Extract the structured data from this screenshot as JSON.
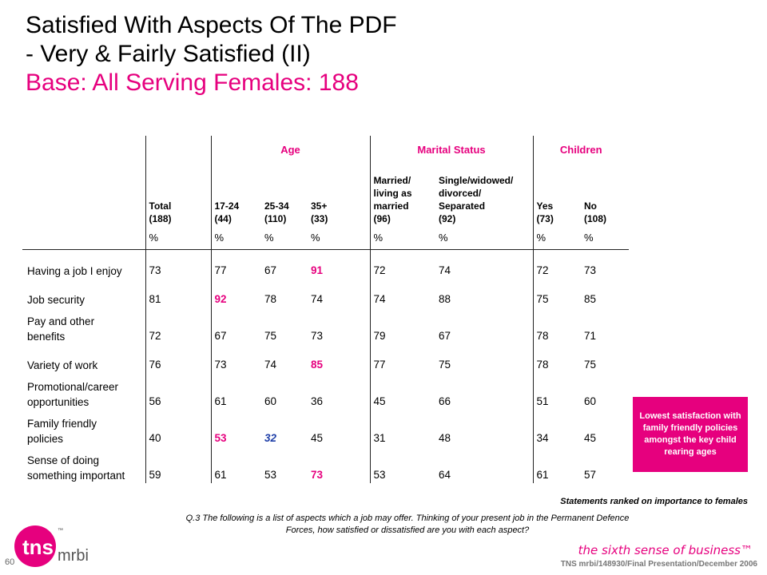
{
  "title": {
    "line1": "Satisfied  With Aspects Of The PDF",
    "line2": "- Very & Fairly Satisfied  (II)",
    "base": "Base:  All Serving Females:  188"
  },
  "groups": {
    "age": "Age",
    "marital": "Marital Status",
    "children": "Children"
  },
  "columns": {
    "total": [
      "Total",
      "(188)"
    ],
    "a1": [
      "17-24",
      "(44)"
    ],
    "a2": [
      "25-34",
      "(110)"
    ],
    "a3": [
      "35+",
      "(33)"
    ],
    "m1": [
      "Married/",
      "living as",
      "married",
      "(96)"
    ],
    "m2": [
      "Single/widowed/",
      "divorced/",
      "Separated",
      "(92)"
    ],
    "c1": [
      "Yes",
      "(73)"
    ],
    "c2": [
      "No",
      "(108)"
    ]
  },
  "pct": "%",
  "rows": [
    {
      "label": [
        "Having a job I enjoy"
      ],
      "values": [
        "73",
        "77",
        "67",
        "91",
        "72",
        "74",
        "72",
        "73"
      ],
      "hl": [
        null,
        null,
        null,
        "pink",
        null,
        null,
        null,
        null
      ]
    },
    {
      "label": [
        "Job security"
      ],
      "values": [
        "81",
        "92",
        "78",
        "74",
        "74",
        "88",
        "75",
        "85"
      ],
      "hl": [
        null,
        "pink",
        null,
        null,
        null,
        null,
        null,
        null
      ]
    },
    {
      "label": [
        "Pay and other",
        "benefits"
      ],
      "values": [
        "72",
        "67",
        "75",
        "73",
        "79",
        "67",
        "78",
        "71"
      ],
      "hl": [
        null,
        null,
        null,
        null,
        null,
        null,
        null,
        null
      ]
    },
    {
      "label": [
        "Variety of work"
      ],
      "values": [
        "76",
        "73",
        "74",
        "85",
        "77",
        "75",
        "78",
        "75"
      ],
      "hl": [
        null,
        null,
        null,
        "pink",
        null,
        null,
        null,
        null
      ]
    },
    {
      "label": [
        "Promotional/career",
        "opportunities"
      ],
      "values": [
        "56",
        "61",
        "60",
        "36",
        "45",
        "66",
        "51",
        "60"
      ],
      "hl": [
        null,
        null,
        null,
        null,
        null,
        null,
        null,
        null
      ]
    },
    {
      "label": [
        "Family friendly",
        "policies"
      ],
      "values": [
        "40",
        "53",
        "32",
        "45",
        "31",
        "48",
        "34",
        "45"
      ],
      "hl": [
        null,
        "pink",
        "blue",
        null,
        null,
        null,
        null,
        null
      ]
    },
    {
      "label": [
        "Sense of doing",
        "something important"
      ],
      "values": [
        "59",
        "61",
        "53",
        "73",
        "53",
        "64",
        "61",
        "57"
      ],
      "hl": [
        null,
        null,
        null,
        "pink",
        null,
        null,
        null,
        null
      ]
    }
  ],
  "callout": "Lowest satisfaction with family friendly policies amongst the key child rearing ages",
  "ranked_note": "Statements ranked on importance to females",
  "question": "Q.3  The following is a list of aspects which a job may offer. Thinking of your present job in the Permanent Defence Forces, how satisfied or dissatisfied are you with each aspect?",
  "logo": {
    "tns": "tns",
    "tm": "™",
    "mrbi": "mrbi"
  },
  "page_number": "60",
  "tagline": "the sixth sense of business™",
  "footer": "TNS mrbi/148930/Final Presentation/December 2006",
  "colors": {
    "accent": "#e6007e",
    "highlight_blue": "#1f3fa8"
  }
}
